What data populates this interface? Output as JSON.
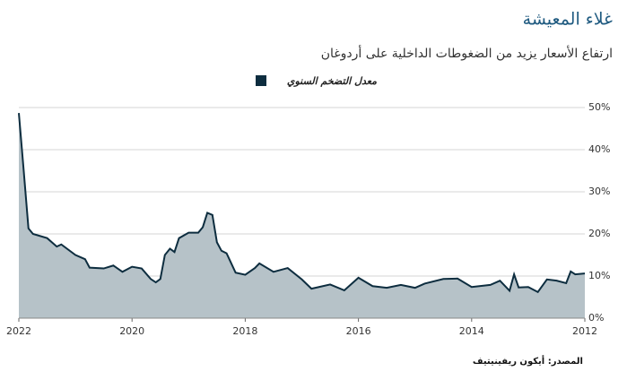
{
  "chart_data": {
    "type": "area",
    "title": "غلاء المعيشة",
    "subtitle": "ارتفاع الأسعار يزيد من الضغوطات الداخلية على أردوغان",
    "source": "المصدر: أيكون ريفينيتيف",
    "grid": true,
    "legend": "top",
    "series": [
      {
        "name": "معدل التضخم السنوي",
        "color": "#0d2d3f",
        "fill": "#b6c2c8",
        "x": [
          2022.0,
          2021.92,
          2021.83,
          2021.75,
          2021.5,
          2021.33,
          2021.25,
          2021.0,
          2020.83,
          2020.75,
          2020.5,
          2020.33,
          2020.17,
          2020.0,
          2019.83,
          2019.67,
          2019.58,
          2019.5,
          2019.42,
          2019.33,
          2019.25,
          2019.17,
          2019.0,
          2018.83,
          2018.75,
          2018.67,
          2018.58,
          2018.5,
          2018.42,
          2018.33,
          2018.17,
          2018.0,
          2017.83,
          2017.75,
          2017.5,
          2017.25,
          2017.0,
          2016.83,
          2016.5,
          2016.25,
          2016.0,
          2015.75,
          2015.5,
          2015.25,
          2015.0,
          2014.83,
          2014.5,
          2014.25,
          2014.0,
          2013.67,
          2013.5,
          2013.33,
          2013.25,
          2013.17,
          2013.0,
          2012.83,
          2012.67,
          2012.5,
          2012.33,
          2012.25,
          2012.17,
          2012.0
        ],
        "values": [
          48.7,
          36,
          21.3,
          20,
          19,
          17,
          17.5,
          15,
          14,
          12,
          11.8,
          12.5,
          11,
          12.2,
          11.8,
          9.3,
          8.5,
          9.3,
          15,
          16.5,
          15.7,
          19,
          20.3,
          20.3,
          21.6,
          25,
          24.5,
          18,
          16,
          15.4,
          10.8,
          10.3,
          11.9,
          13,
          11,
          11.9,
          9.2,
          7,
          8,
          6.6,
          9.6,
          7.6,
          7.2,
          7.9,
          7.2,
          8.2,
          9.3,
          9.4,
          7.4,
          7.9,
          8.9,
          6.5,
          10.4,
          7.3,
          7.4,
          6.2,
          9.2,
          8.9,
          8.3,
          11.1,
          10.4,
          10.6
        ]
      }
    ],
    "xlim": [
      2022,
      2012
    ],
    "xticks": [
      2022,
      2020,
      2018,
      2016,
      2014,
      2012
    ],
    "ylim": [
      0,
      50
    ],
    "yticks": [
      {
        "value": 0,
        "label": "0%"
      },
      {
        "value": 10,
        "label": "10%"
      },
      {
        "value": 20,
        "label": "20%"
      },
      {
        "value": 30,
        "label": "30%"
      },
      {
        "value": 40,
        "label": "40%"
      },
      {
        "value": 50,
        "label": "50%"
      }
    ]
  }
}
